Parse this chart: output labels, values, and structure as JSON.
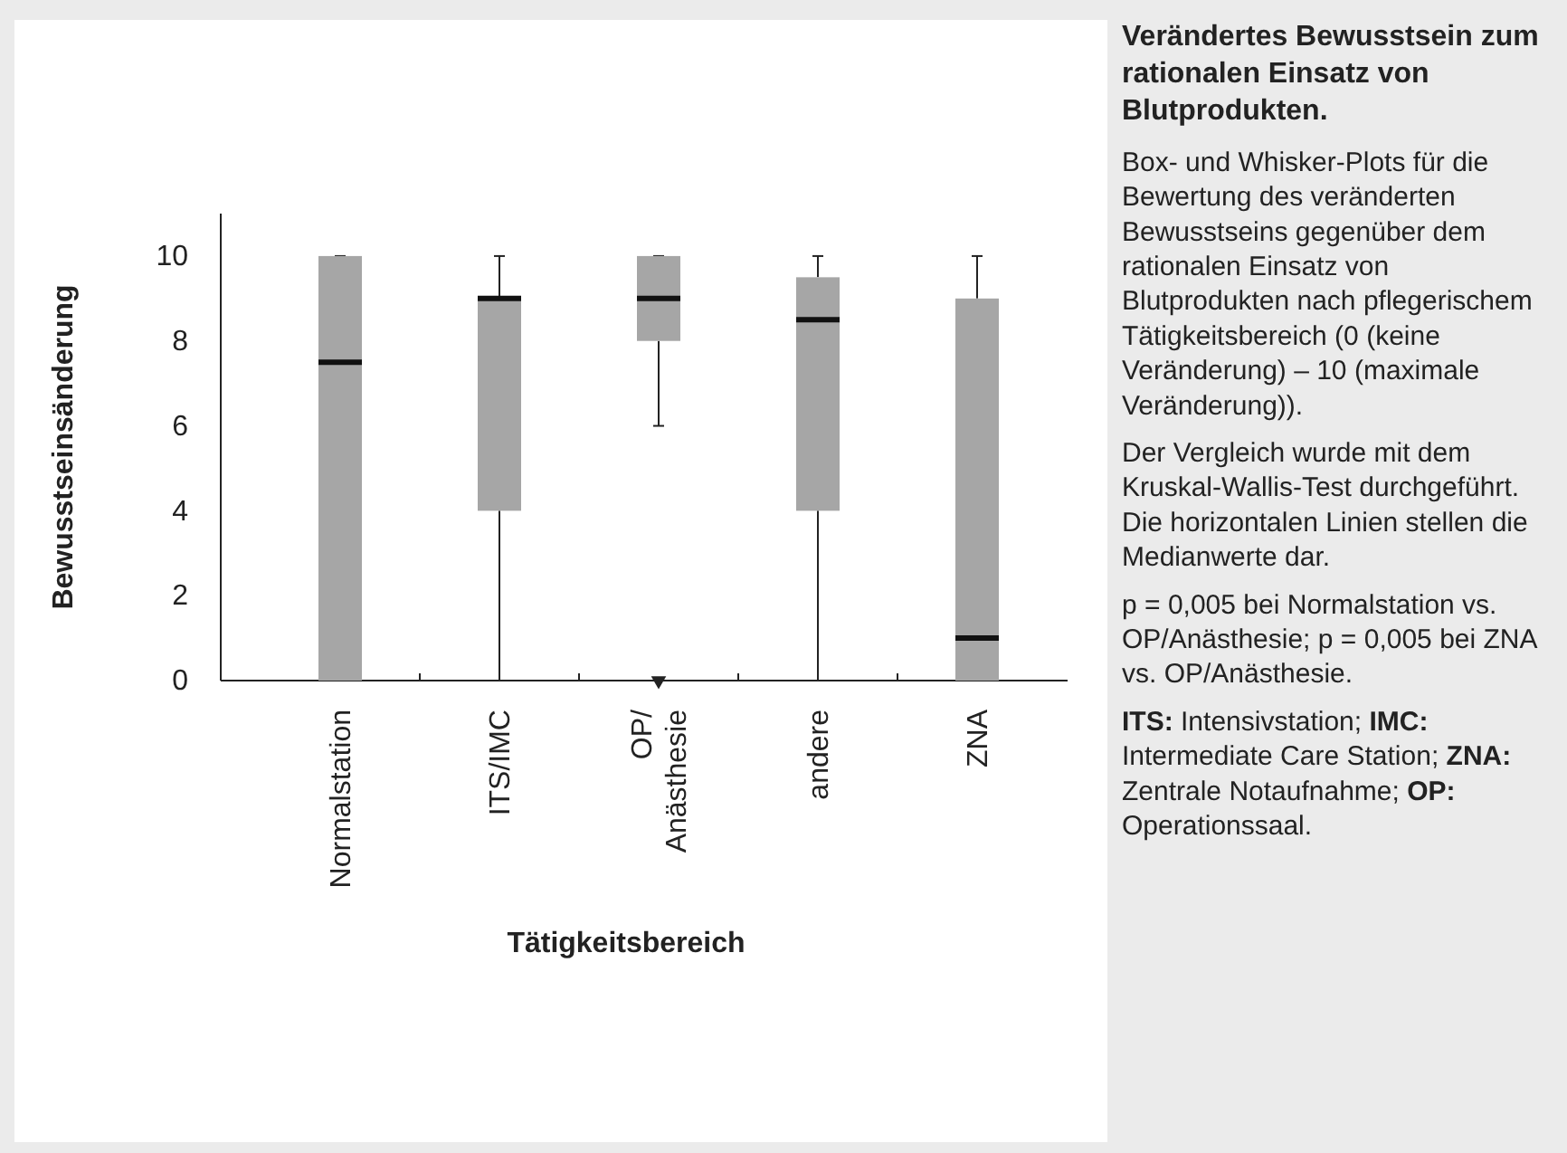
{
  "chart_data": {
    "type": "box",
    "title": "Verändertes Bewusstsein zum rationalen Einsatz von Blutprodukten.",
    "xlabel": "Tätigkeitsbereich",
    "ylabel": "Bewusstseinsänderung",
    "categories": [
      "Normalstation",
      "ITS/IMC",
      "OP/ Anästhesie",
      "andere",
      "ZNA"
    ],
    "boxes": [
      {
        "low": 0,
        "q1": 0,
        "median": 7.5,
        "q3": 10,
        "high": 10
      },
      {
        "low": 0,
        "q1": 4,
        "median": 9,
        "q3": 9,
        "high": 10
      },
      {
        "low": 6,
        "q1": 8,
        "median": 9,
        "q3": 10,
        "high": 10,
        "outliers": [
          0
        ]
      },
      {
        "low": 0,
        "q1": 4,
        "median": 8.5,
        "q3": 9.5,
        "high": 10
      },
      {
        "low": 0,
        "q1": 0,
        "median": 1,
        "q3": 9,
        "high": 10
      }
    ],
    "color": "#a6a6a6",
    "ylim": [
      0,
      11
    ],
    "yticks": [
      0,
      2,
      4,
      6,
      8,
      10
    ],
    "grid": false,
    "annotations": [
      "Box- und Whisker-Plots für die Bewertung des veränderten Bewusstseins gegenüber dem rationalen Einsatz von Blutprodukten nach pflegerischem Tätigkeitsbereich (0 (keine Veränderung) – 10 (maximale Veränderung)).",
      "Der Vergleich wurde mit dem Kruskal-Wallis-Test durchgeführt. Die horizontalen Linien stellen die Medianwerte dar.",
      "p = 0,005 bei Normalstation vs. OP/Anästhesie; p = 0,005 bei ZNA vs. OP/Anästhesie.",
      "ITS: Intensivstation; IMC: Intermediate Care Station; ZNA: Zentrale Notaufnahme; OP: Operationssaal."
    ]
  }
}
